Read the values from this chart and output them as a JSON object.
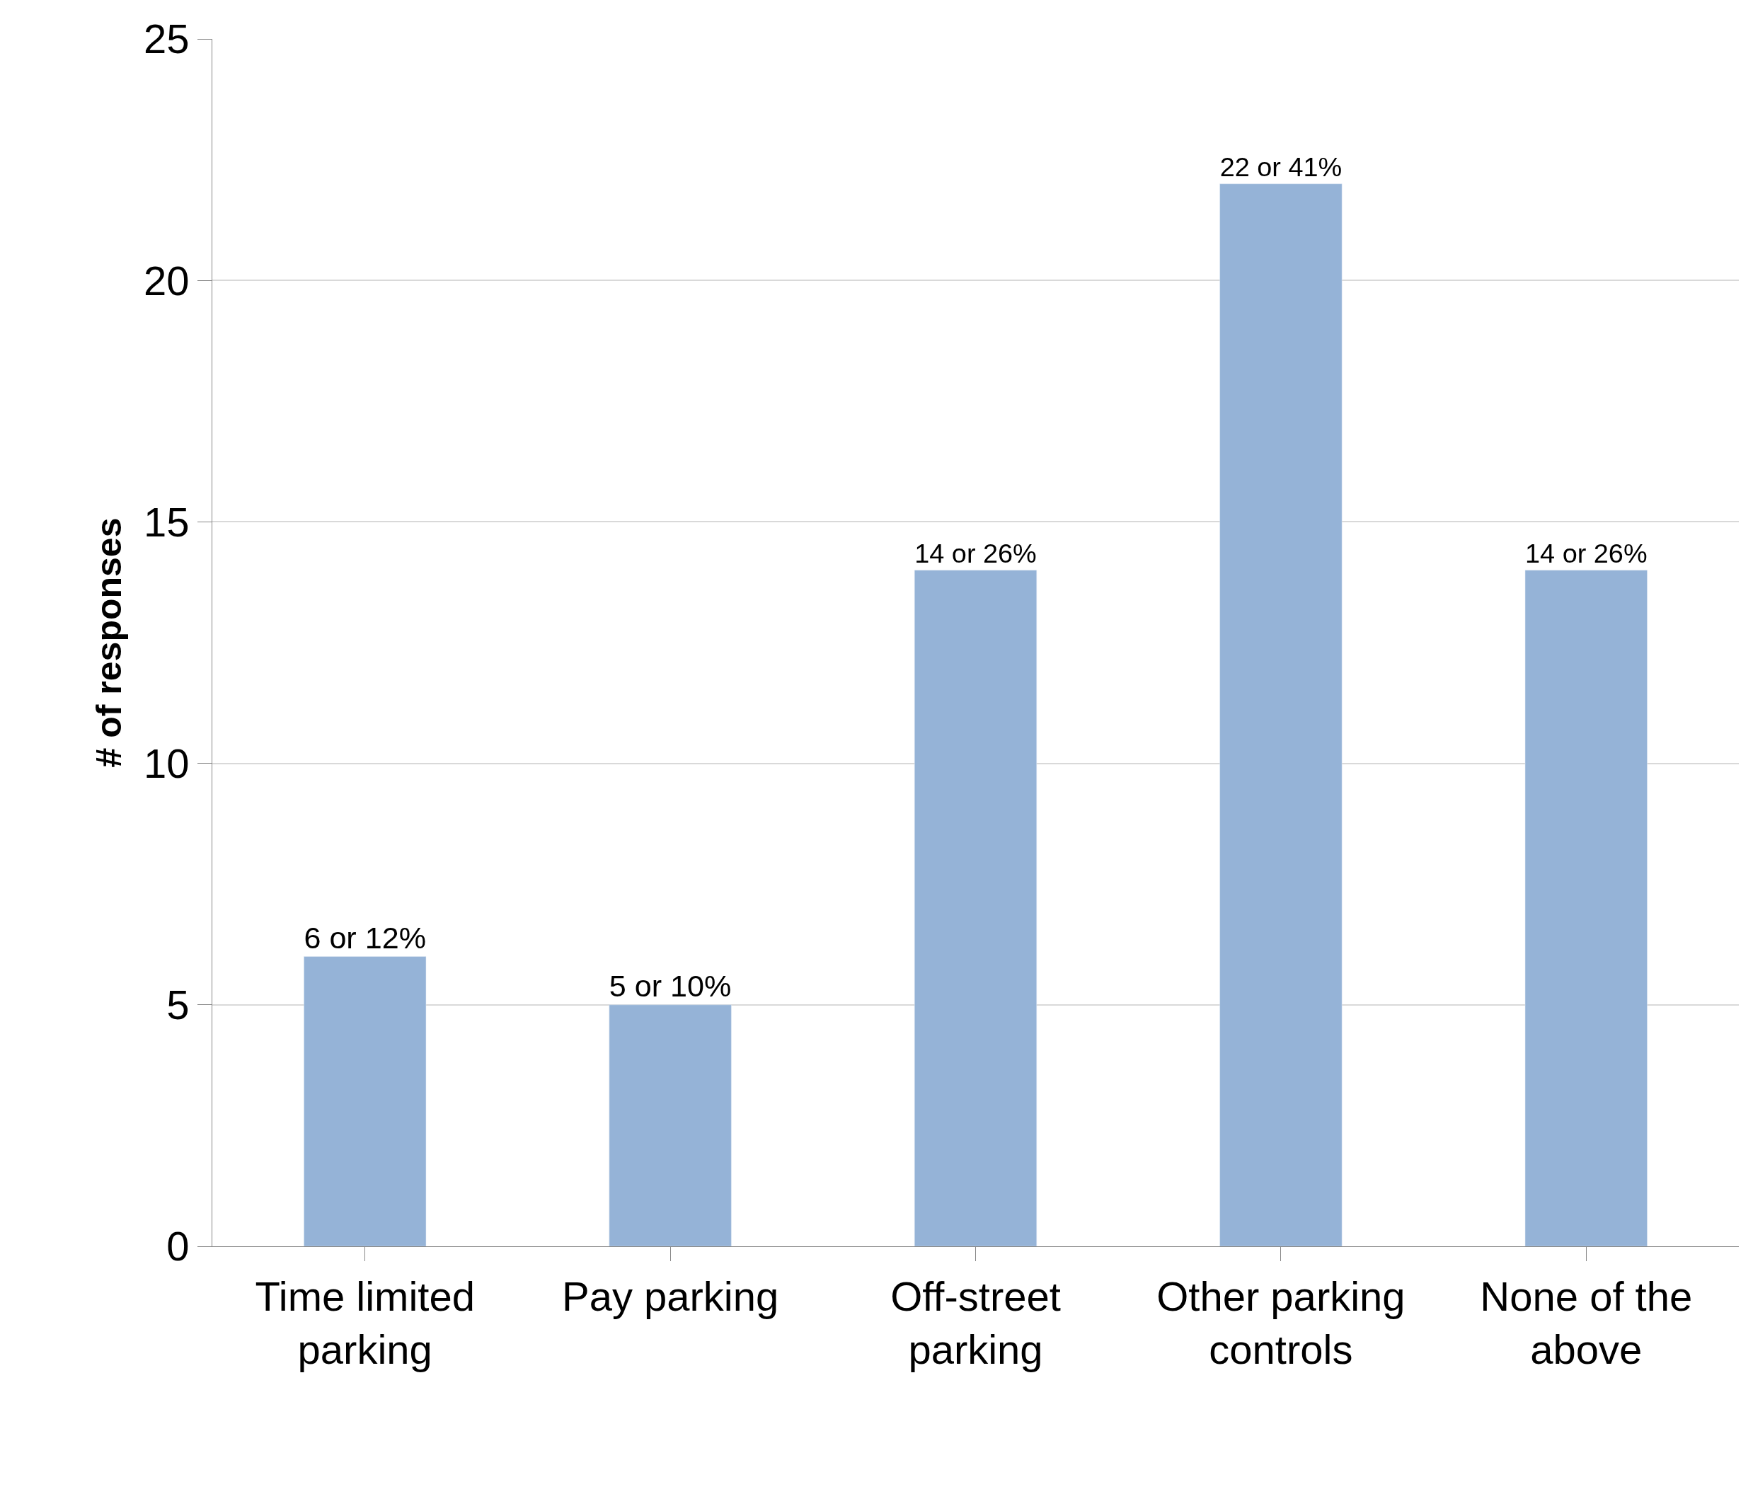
{
  "chart_data": {
    "type": "bar",
    "ylabel": "# of responses",
    "categories": [
      "Time limited parking",
      "Pay parking",
      "Off-street parking",
      "Other parking controls",
      "None of the above"
    ],
    "values": [
      6,
      5,
      14,
      22,
      14
    ],
    "value_labels": [
      "6 or 12%",
      "5 or 10%",
      "14 or 26%",
      "22 or 41%",
      "14 or 26%"
    ],
    "color": "#95b3d7",
    "ylim": [
      0,
      25
    ],
    "yticks": [
      0,
      5,
      10,
      15,
      20,
      25
    ],
    "grid": "y",
    "legend": false
  }
}
